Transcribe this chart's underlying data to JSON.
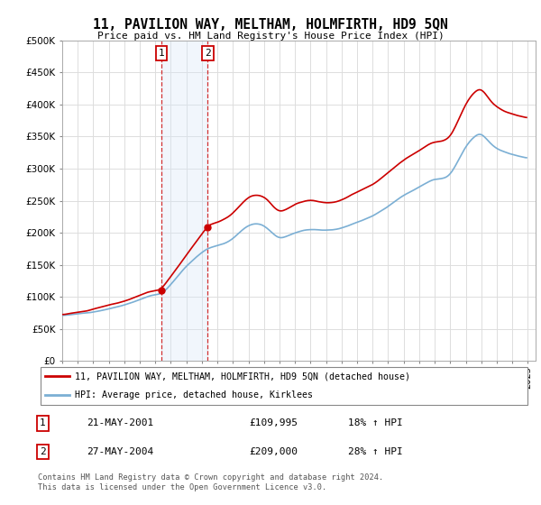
{
  "title": "11, PAVILION WAY, MELTHAM, HOLMFIRTH, HD9 5QN",
  "subtitle": "Price paid vs. HM Land Registry's House Price Index (HPI)",
  "legend_line1": "11, PAVILION WAY, MELTHAM, HOLMFIRTH, HD9 5QN (detached house)",
  "legend_line2": "HPI: Average price, detached house, Kirklees",
  "footer": "Contains HM Land Registry data © Crown copyright and database right 2024.\nThis data is licensed under the Open Government Licence v3.0.",
  "annotation1_date": "21-MAY-2001",
  "annotation1_price": "£109,995",
  "annotation1_hpi": "18% ↑ HPI",
  "annotation2_date": "27-MAY-2004",
  "annotation2_price": "£209,000",
  "annotation2_hpi": "28% ↑ HPI",
  "sale1_year": 2001.38,
  "sale1_price": 109995,
  "sale2_year": 2004.38,
  "sale2_price": 209000,
  "line_color_red": "#cc0000",
  "line_color_blue": "#7bafd4",
  "shade_color": "#d8e8f8",
  "vline_color": "#cc0000",
  "ylim": [
    0,
    500000
  ],
  "yticks": [
    0,
    50000,
    100000,
    150000,
    200000,
    250000,
    300000,
    350000,
    400000,
    450000,
    500000
  ],
  "background_color": "#ffffff",
  "grid_color": "#dddddd"
}
